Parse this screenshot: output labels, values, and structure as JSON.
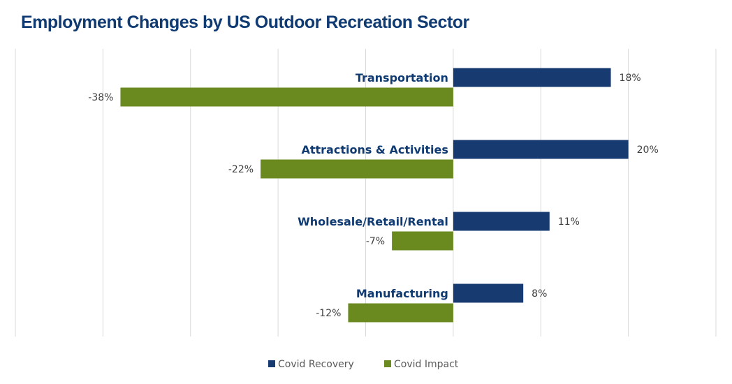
{
  "chart_data": {
    "type": "bar",
    "orientation": "horizontal",
    "title": "Employment Changes by US Outdoor Recreation Sector",
    "categories": [
      "Transportation",
      "Attractions & Activities",
      "Wholesale/Retail/Rental",
      "Manufacturing"
    ],
    "series": [
      {
        "name": "Covid Recovery",
        "color": "#173a70",
        "values": [
          18,
          20,
          11,
          8
        ],
        "labels": [
          "18%",
          "20%",
          "11%",
          "8%"
        ]
      },
      {
        "name": "Covid Impact",
        "color": "#6a8a1f",
        "values": [
          -38,
          -22,
          -7,
          -12
        ],
        "labels": [
          "-38%",
          "-22%",
          "-7%",
          "-12%"
        ]
      }
    ],
    "xlim": [
      -50,
      30
    ],
    "grid_step": 10,
    "grid": true,
    "tick_labels_shown": false,
    "legend_placement": "bottom"
  }
}
